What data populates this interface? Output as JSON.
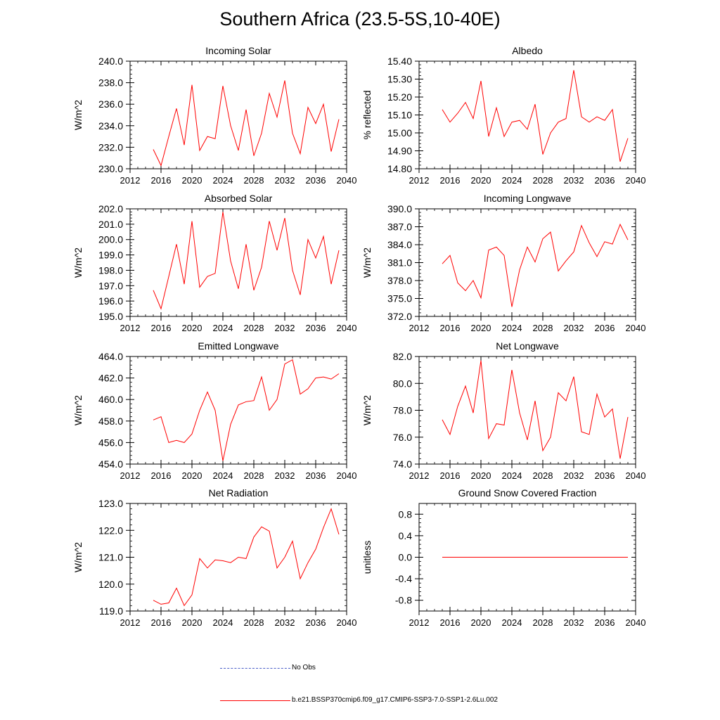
{
  "title": "Southern Africa (23.5-5S,10-40E)",
  "legend": {
    "obs_label": "No Obs",
    "obs_color": "#4a5ec8",
    "model_label": "b.e21.BSSP370cmip6.f09_g17.CMIP6-SSP3-7.0-SSP1-2.6Lu.002",
    "model_color": "#ff0000"
  },
  "chart_data": [
    {
      "type": "line",
      "title": "Incoming Solar",
      "ylabel": "W/m^2",
      "xlim": [
        2012,
        2040
      ],
      "xticks": [
        "2012",
        "2016",
        "2020",
        "2024",
        "2028",
        "2032",
        "2036",
        "2040"
      ],
      "ylim": [
        230.0,
        240.0
      ],
      "yticks": [
        "230.0",
        "232.0",
        "234.0",
        "236.0",
        "238.0",
        "240.0"
      ],
      "x": [
        2015,
        2016,
        2017,
        2018,
        2019,
        2020,
        2021,
        2022,
        2023,
        2024,
        2025,
        2026,
        2027,
        2028,
        2029,
        2030,
        2031,
        2032,
        2033,
        2034,
        2035,
        2036,
        2037,
        2038,
        2039
      ],
      "values": [
        231.8,
        230.3,
        233.0,
        235.6,
        232.2,
        237.8,
        231.7,
        233.0,
        232.8,
        237.7,
        234.0,
        231.7,
        235.5,
        231.2,
        233.3,
        237.0,
        234.8,
        238.2,
        233.3,
        231.4,
        235.7,
        234.2,
        236.0,
        231.6,
        234.6
      ],
      "color": "#ff0000"
    },
    {
      "type": "line",
      "title": "Albedo",
      "ylabel": "% reflected",
      "xlim": [
        2012,
        2040
      ],
      "xticks": [
        "2012",
        "2016",
        "2020",
        "2024",
        "2028",
        "2032",
        "2036",
        "2040"
      ],
      "ylim": [
        14.8,
        15.4
      ],
      "yticks": [
        "14.80",
        "14.90",
        "15.00",
        "15.10",
        "15.20",
        "15.30",
        "15.40"
      ],
      "x": [
        2015,
        2016,
        2017,
        2018,
        2019,
        2020,
        2021,
        2022,
        2023,
        2024,
        2025,
        2026,
        2027,
        2028,
        2029,
        2030,
        2031,
        2032,
        2033,
        2034,
        2035,
        2036,
        2037,
        2038,
        2039
      ],
      "values": [
        15.13,
        15.06,
        15.11,
        15.17,
        15.08,
        15.29,
        14.98,
        15.14,
        14.98,
        15.06,
        15.07,
        15.02,
        15.16,
        14.88,
        15.0,
        15.06,
        15.08,
        15.35,
        15.09,
        15.06,
        15.09,
        15.07,
        15.13,
        14.84,
        14.97
      ],
      "color": "#ff0000"
    },
    {
      "type": "line",
      "title": "Absorbed Solar",
      "ylabel": "W/m^2",
      "xlim": [
        2012,
        2040
      ],
      "xticks": [
        "2012",
        "2016",
        "2020",
        "2024",
        "2028",
        "2032",
        "2036",
        "2040"
      ],
      "ylim": [
        195.0,
        202.0
      ],
      "yticks": [
        "195.0",
        "196.0",
        "197.0",
        "198.0",
        "199.0",
        "200.0",
        "201.0",
        "202.0"
      ],
      "x": [
        2015,
        2016,
        2017,
        2018,
        2019,
        2020,
        2021,
        2022,
        2023,
        2024,
        2025,
        2026,
        2027,
        2028,
        2029,
        2030,
        2031,
        2032,
        2033,
        2034,
        2035,
        2036,
        2037,
        2038,
        2039
      ],
      "values": [
        196.7,
        195.5,
        197.6,
        199.7,
        197.1,
        201.2,
        196.9,
        197.6,
        197.8,
        201.8,
        198.6,
        196.8,
        199.7,
        196.7,
        198.2,
        201.2,
        199.3,
        201.4,
        198.0,
        196.4,
        200.0,
        198.8,
        200.2,
        197.1,
        199.3
      ],
      "color": "#ff0000"
    },
    {
      "type": "line",
      "title": "Incoming Longwave",
      "ylabel": "W/m^2",
      "xlim": [
        2012,
        2040
      ],
      "xticks": [
        "2012",
        "2016",
        "2020",
        "2024",
        "2028",
        "2032",
        "2036",
        "2040"
      ],
      "ylim": [
        372.0,
        390.0
      ],
      "yticks": [
        "372.0",
        "375.0",
        "378.0",
        "381.0",
        "384.0",
        "387.0",
        "390.0"
      ],
      "x": [
        2015,
        2016,
        2017,
        2018,
        2019,
        2020,
        2021,
        2022,
        2023,
        2024,
        2025,
        2026,
        2027,
        2028,
        2029,
        2030,
        2031,
        2032,
        2033,
        2034,
        2035,
        2036,
        2037,
        2038,
        2039
      ],
      "values": [
        380.8,
        382.2,
        377.6,
        376.3,
        378.0,
        375.1,
        383.1,
        383.6,
        382.2,
        373.6,
        379.8,
        383.6,
        381.1,
        385.0,
        386.1,
        379.6,
        381.3,
        382.8,
        387.2,
        384.3,
        382.0,
        384.5,
        384.1,
        387.4,
        384.8
      ],
      "color": "#ff0000"
    },
    {
      "type": "line",
      "title": "Emitted Longwave",
      "ylabel": "W/m^2",
      "xlim": [
        2012,
        2040
      ],
      "xticks": [
        "2012",
        "2016",
        "2020",
        "2024",
        "2028",
        "2032",
        "2036",
        "2040"
      ],
      "ylim": [
        454.0,
        464.0
      ],
      "yticks": [
        "454.0",
        "456.0",
        "458.0",
        "460.0",
        "462.0",
        "464.0"
      ],
      "x": [
        2015,
        2016,
        2017,
        2018,
        2019,
        2020,
        2021,
        2022,
        2023,
        2024,
        2025,
        2026,
        2027,
        2028,
        2029,
        2030,
        2031,
        2032,
        2033,
        2034,
        2035,
        2036,
        2037,
        2038,
        2039
      ],
      "values": [
        458.1,
        458.4,
        456.0,
        456.2,
        456.0,
        456.8,
        459.0,
        460.7,
        459.0,
        454.3,
        457.7,
        459.5,
        459.8,
        459.9,
        462.1,
        459.0,
        460.0,
        463.3,
        463.7,
        460.5,
        461.0,
        462.0,
        462.1,
        461.9,
        462.4
      ],
      "color": "#ff0000"
    },
    {
      "type": "line",
      "title": "Net Longwave",
      "ylabel": "W/m^2",
      "xlim": [
        2012,
        2040
      ],
      "xticks": [
        "2012",
        "2016",
        "2020",
        "2024",
        "2028",
        "2032",
        "2036",
        "2040"
      ],
      "ylim": [
        74.0,
        82.0
      ],
      "yticks": [
        "74.0",
        "76.0",
        "78.0",
        "80.0",
        "82.0"
      ],
      "x": [
        2015,
        2016,
        2017,
        2018,
        2019,
        2020,
        2021,
        2022,
        2023,
        2024,
        2025,
        2026,
        2027,
        2028,
        2029,
        2030,
        2031,
        2032,
        2033,
        2034,
        2035,
        2036,
        2037,
        2038,
        2039
      ],
      "values": [
        77.3,
        76.2,
        78.3,
        79.8,
        77.8,
        81.7,
        75.9,
        77.0,
        76.9,
        81.0,
        77.8,
        75.8,
        78.7,
        75.0,
        76.0,
        79.3,
        78.7,
        80.5,
        76.4,
        76.2,
        79.2,
        77.5,
        78.1,
        74.4,
        77.5
      ],
      "color": "#ff0000"
    },
    {
      "type": "line",
      "title": "Net Radiation",
      "ylabel": "W/m^2",
      "xlim": [
        2012,
        2040
      ],
      "xticks": [
        "2012",
        "2016",
        "2020",
        "2024",
        "2028",
        "2032",
        "2036",
        "2040"
      ],
      "ylim": [
        119.0,
        123.0
      ],
      "yticks": [
        "119.0",
        "120.0",
        "121.0",
        "122.0",
        "123.0"
      ],
      "x": [
        2015,
        2016,
        2017,
        2018,
        2019,
        2020,
        2021,
        2022,
        2023,
        2024,
        2025,
        2026,
        2027,
        2028,
        2029,
        2030,
        2031,
        2032,
        2033,
        2034,
        2035,
        2036,
        2037,
        2038,
        2039
      ],
      "values": [
        119.4,
        119.25,
        119.3,
        119.85,
        119.2,
        119.6,
        120.95,
        120.6,
        120.9,
        120.87,
        120.8,
        121.0,
        120.95,
        121.75,
        122.13,
        121.97,
        120.6,
        121.0,
        121.6,
        120.2,
        120.8,
        121.3,
        122.1,
        122.8,
        121.85
      ],
      "color": "#ff0000"
    },
    {
      "type": "line",
      "title": "Ground Snow Covered Fraction",
      "ylabel": "unitless",
      "xlim": [
        2012,
        2040
      ],
      "xticks": [
        "2012",
        "2016",
        "2020",
        "2024",
        "2028",
        "2032",
        "2036",
        "2040"
      ],
      "ylim": [
        -1.0,
        1.0
      ],
      "yticks": [
        "-0.8",
        "-0.4",
        "0.0",
        "0.4",
        "0.8"
      ],
      "ytick_values": [
        -0.8,
        -0.4,
        0.0,
        0.4,
        0.8
      ],
      "x": [
        2015,
        2016,
        2017,
        2018,
        2019,
        2020,
        2021,
        2022,
        2023,
        2024,
        2025,
        2026,
        2027,
        2028,
        2029,
        2030,
        2031,
        2032,
        2033,
        2034,
        2035,
        2036,
        2037,
        2038,
        2039
      ],
      "values": [
        0,
        0,
        0,
        0,
        0,
        0,
        0,
        0,
        0,
        0,
        0,
        0,
        0,
        0,
        0,
        0,
        0,
        0,
        0,
        0,
        0,
        0,
        0,
        0,
        0
      ],
      "color": "#ff0000"
    }
  ]
}
